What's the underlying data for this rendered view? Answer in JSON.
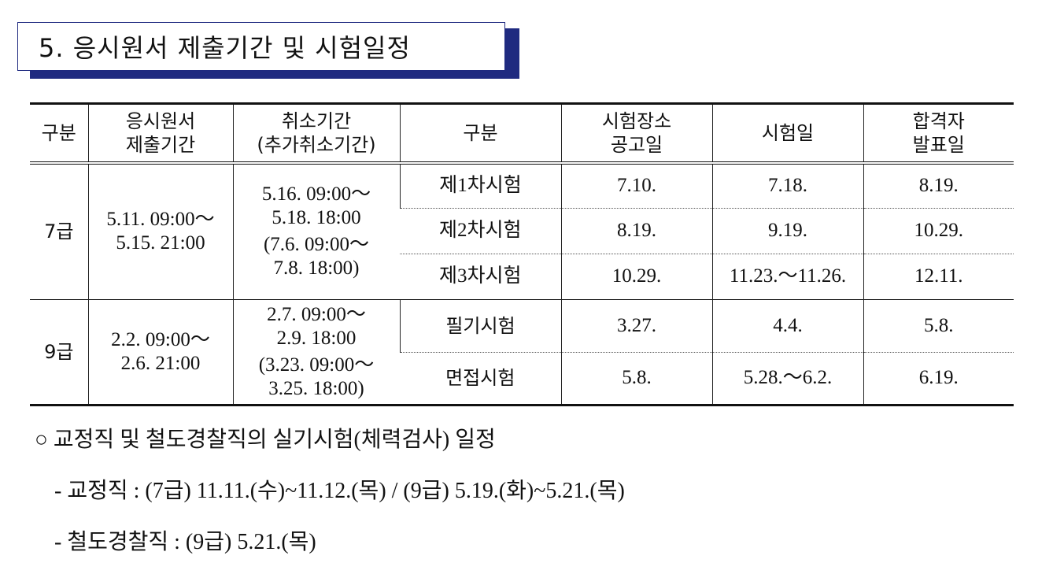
{
  "heading": "5. 응시원서 제출기간 및 시험일정",
  "table": {
    "header": [
      [
        "구분"
      ],
      [
        "응시원서",
        "제출기간"
      ],
      [
        "취소기간",
        "(추가취소기간)"
      ],
      [
        "구분"
      ],
      [
        "시험장소",
        "공고일"
      ],
      [
        "시험일"
      ],
      [
        "합격자",
        "발표일"
      ]
    ],
    "groups": [
      {
        "grade": "7급",
        "submit": [
          "5.11. 09:00～",
          "5.15. 21:00"
        ],
        "cancel": [
          "5.16. 09:00～",
          "5.18. 18:00"
        ],
        "extra": [
          "(7.6. 09:00～",
          "7.8. 18:00)"
        ],
        "exams": [
          [
            "제1차시험",
            "7.10.",
            "7.18.",
            "8.19."
          ],
          [
            "제2차시험",
            "8.19.",
            "9.19.",
            "10.29."
          ],
          [
            "제3차시험",
            "10.29.",
            "11.23.～11.26.",
            "12.11."
          ]
        ]
      },
      {
        "grade": "9급",
        "submit": [
          "2.2. 09:00～",
          "2.6. 21:00"
        ],
        "cancel": [
          "2.7. 09:00～",
          "2.9. 18:00"
        ],
        "extra": [
          "(3.23. 09:00～",
          "3.25. 18:00)"
        ],
        "exams": [
          [
            "필기시험",
            "3.27.",
            "4.4.",
            "5.8."
          ],
          [
            "면접시험",
            "5.8.",
            "5.28.～6.2.",
            "6.19."
          ]
        ]
      }
    ]
  },
  "notes": [
    "○ 교정직 및 철도경찰직의 실기시험(체력검사) 일정",
    " - 교정직 : (7급) 11.11.(수)~11.12.(목) / (9급) 5.19.(화)~5.21.(목)",
    " - 철도경찰직 : (9급) 5.21.(목)"
  ]
}
